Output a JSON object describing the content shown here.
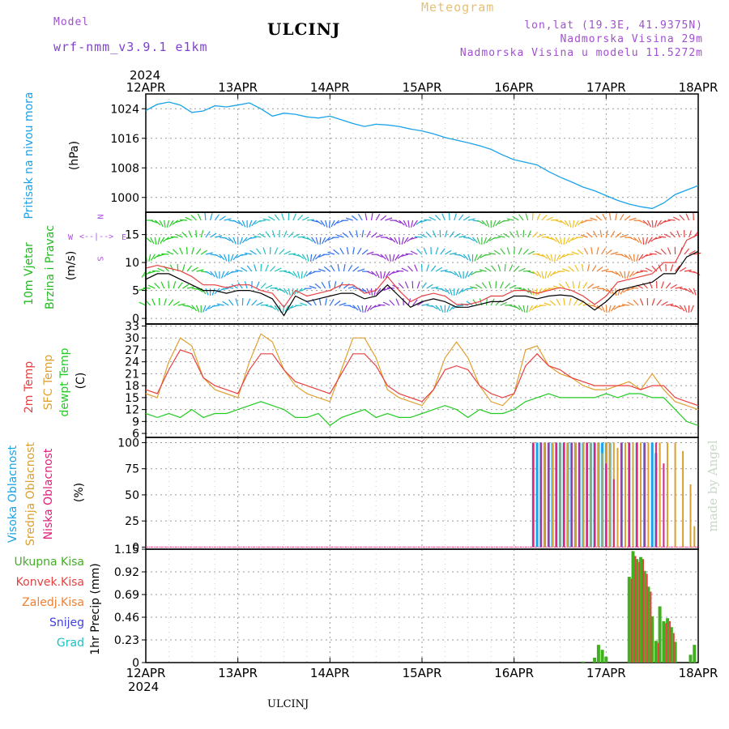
{
  "header": {
    "model_label": "Model",
    "model_name": "wrf-nmm_v3.9.1 e1km",
    "station": "ULCINJ",
    "chart_kind": "Meteogram",
    "lonlat": "lon,lat (19.3E, 41.9375N)",
    "elevation": "Nadmorska Visina 29m",
    "model_elevation": "Nadmorska Visina u modelu 11.5272m",
    "footer_station": "ULCINJ",
    "watermark": "made by Angel"
  },
  "colors": {
    "pressure": "#1aa3e8",
    "t2m": "#e84040",
    "sfc": "#e0a030",
    "dewpt": "#22cc22",
    "high_cloud": "#1aa3e8",
    "mid_cloud": "#d8a030",
    "low_cloud": "#e0207a",
    "precip_total": "#40b020",
    "precip_conv": "#e84040",
    "precip_strat": "#f08030",
    "snow": "#4040e0",
    "graupel": "#20c0c0",
    "wind_speed": "#000000",
    "gust": "#e84040"
  },
  "legends": {
    "pressure_name": "Pritisak na nivou mora",
    "pressure_unit": "(hPa)",
    "wind_name1": "10m Vjetar",
    "wind_name2": "Brzina i Pravac",
    "wind_unit": "(m/s)",
    "compass_n": "N",
    "compass_s": "S",
    "compass_e": "E",
    "compass_w": "W",
    "t2m": "2m Temp",
    "sfc": "SFC Temp",
    "dewpt": "dewpt Temp",
    "temp_unit": "(C)",
    "high_cloud": "Visoka Oblacnost",
    "mid_cloud": "Srednja Oblacnost",
    "low_cloud": "Niska Oblacnost",
    "cloud_unit": "(%)",
    "precip_total": "Ukupna Kisa",
    "precip_conv": "Konvek.Kisa",
    "precip_strat": "Zaledj.Kisa",
    "snow": "Snijeg",
    "graupel": "Grad",
    "precip_unit": "1hr Precip (mm)"
  },
  "chart_data": {
    "type": "line",
    "year": "2024",
    "x_labels": [
      "12APR",
      "13APR",
      "14APR",
      "15APR",
      "16APR",
      "17APR",
      "18APR"
    ],
    "hours_total": 144,
    "panels": {
      "pressure": {
        "unit": "hPa",
        "ylim": [
          996,
          1028
        ],
        "yticks": [
          1000,
          1008,
          1016,
          1024
        ],
        "x": [
          0,
          3,
          6,
          9,
          12,
          15,
          18,
          21,
          24,
          27,
          30,
          33,
          36,
          39,
          42,
          45,
          48,
          51,
          54,
          57,
          60,
          63,
          66,
          69,
          72,
          75,
          78,
          81,
          84,
          87,
          90,
          93,
          96,
          99,
          102,
          105,
          108,
          111,
          114,
          117,
          120,
          123,
          126,
          129,
          132,
          135,
          138,
          141,
          144
        ],
        "values": [
          1023.5,
          1025.2,
          1025.8,
          1025.0,
          1023.0,
          1023.4,
          1024.8,
          1024.5,
          1025.0,
          1025.6,
          1024.0,
          1022.0,
          1022.8,
          1022.5,
          1021.8,
          1021.5,
          1022.0,
          1021.0,
          1020.0,
          1019.2,
          1019.8,
          1019.6,
          1019.2,
          1018.5,
          1018.0,
          1017.2,
          1016.2,
          1015.5,
          1014.8,
          1014.0,
          1013.0,
          1011.5,
          1010.2,
          1009.5,
          1008.8,
          1007.0,
          1005.5,
          1004.2,
          1002.8,
          1001.8,
          1000.5,
          999.2,
          998.2,
          997.5,
          997.0,
          998.5,
          1000.8,
          1002.0,
          1003.2
        ]
      },
      "wind": {
        "unit": "m/s",
        "ylim": [
          -1,
          19
        ],
        "yticks": [
          0,
          5,
          10,
          15
        ],
        "x": [
          0,
          3,
          6,
          9,
          12,
          15,
          18,
          21,
          24,
          27,
          30,
          33,
          36,
          39,
          42,
          45,
          48,
          51,
          54,
          57,
          60,
          63,
          66,
          69,
          72,
          75,
          78,
          81,
          84,
          87,
          90,
          93,
          96,
          99,
          102,
          105,
          108,
          111,
          114,
          117,
          120,
          123,
          126,
          129,
          132,
          135,
          138,
          141,
          144
        ],
        "speed": [
          7,
          8,
          8,
          7,
          6,
          5,
          5,
          4.5,
          5,
          5,
          4.5,
          3.5,
          0.5,
          4,
          3,
          3.5,
          4,
          4.5,
          4.5,
          3.5,
          4,
          6,
          4,
          2,
          3,
          3.5,
          3,
          2,
          2,
          2.5,
          3,
          3,
          4,
          4,
          3.5,
          4,
          4.2,
          4,
          3,
          1.5,
          3,
          5,
          5.5,
          6,
          6.5,
          8,
          8,
          11,
          12
        ],
        "gust": [
          9,
          9.5,
          9,
          8.5,
          7.5,
          6,
          6,
          5.5,
          6,
          6,
          5,
          4.5,
          2,
          5,
          4,
          4.5,
          5,
          6,
          6,
          4.5,
          5,
          7.5,
          5,
          3,
          4,
          4.5,
          4,
          2.5,
          2.5,
          3,
          4,
          4,
          5,
          5,
          4.5,
          5,
          5.5,
          5,
          4,
          2.5,
          4,
          6.5,
          7,
          7.5,
          8,
          10,
          10,
          14,
          15
        ]
      },
      "temperature": {
        "unit": "C",
        "ylim": [
          5,
          33.5
        ],
        "yticks": [
          6,
          9,
          12,
          15,
          18,
          21,
          24,
          27,
          30,
          33
        ],
        "x": [
          0,
          3,
          6,
          9,
          12,
          15,
          18,
          21,
          24,
          27,
          30,
          33,
          36,
          39,
          42,
          45,
          48,
          51,
          54,
          57,
          60,
          63,
          66,
          69,
          72,
          75,
          78,
          81,
          84,
          87,
          90,
          93,
          96,
          99,
          102,
          105,
          108,
          111,
          114,
          117,
          120,
          123,
          126,
          129,
          132,
          135,
          138,
          141,
          144
        ],
        "t2m": [
          17,
          16,
          22,
          27,
          26,
          20,
          18,
          17,
          16,
          22,
          26,
          26,
          22,
          19,
          18,
          17,
          16,
          21,
          26,
          26,
          23,
          18,
          16,
          15,
          14,
          17,
          22,
          23,
          22,
          18,
          16,
          15,
          16,
          23,
          26,
          23,
          22,
          20,
          19,
          18,
          18,
          18,
          18,
          17,
          18,
          18,
          15,
          14,
          13
        ],
        "sfc": [
          16,
          15,
          24,
          30,
          28,
          20,
          17,
          16,
          15,
          24,
          31,
          29,
          22,
          18,
          16,
          15,
          14,
          22,
          30,
          30,
          25,
          17,
          15,
          14,
          13,
          17,
          25,
          29,
          25,
          18,
          14,
          13,
          16,
          27,
          28,
          23,
          21,
          20,
          18,
          17,
          17,
          18,
          19,
          17,
          21,
          17,
          14,
          13,
          12
        ],
        "dewpt": [
          11,
          10,
          11,
          10,
          12,
          10,
          11,
          11,
          12,
          13,
          14,
          13,
          12,
          10,
          10,
          11,
          8,
          10,
          11,
          12,
          10,
          11,
          10,
          10,
          11,
          12,
          13,
          12,
          10,
          12,
          11,
          11,
          12,
          14,
          15,
          16,
          15,
          15,
          15,
          15,
          16,
          15,
          16,
          16,
          15,
          15,
          12,
          9,
          8
        ]
      },
      "cloud": {
        "unit": "%",
        "ylim": [
          -2,
          105
        ],
        "yticks": [
          0,
          25,
          50,
          75,
          100
        ],
        "high": [
          [
            101,
            100
          ],
          [
            102,
            100
          ],
          [
            103,
            100
          ],
          [
            104,
            100
          ],
          [
            105,
            100
          ],
          [
            106,
            100
          ],
          [
            107,
            100
          ],
          [
            108,
            100
          ],
          [
            109,
            100
          ],
          [
            110,
            100
          ],
          [
            111,
            100
          ],
          [
            112,
            100
          ],
          [
            113,
            100
          ],
          [
            114,
            100
          ],
          [
            115,
            100
          ],
          [
            116,
            100
          ],
          [
            117,
            100
          ],
          [
            118,
            100
          ],
          [
            119,
            100
          ],
          [
            120,
            100
          ],
          [
            121,
            100
          ],
          [
            124,
            100
          ],
          [
            126,
            100
          ],
          [
            128,
            100
          ],
          [
            130,
            100
          ],
          [
            132,
            100
          ],
          [
            133,
            90
          ]
        ],
        "mid": [
          [
            104,
            100
          ],
          [
            106,
            100
          ],
          [
            108,
            100
          ],
          [
            110,
            100
          ],
          [
            112,
            100
          ],
          [
            114,
            100
          ],
          [
            116,
            100
          ],
          [
            118,
            100
          ],
          [
            119,
            90
          ],
          [
            120,
            100
          ],
          [
            121,
            100
          ],
          [
            122,
            100
          ],
          [
            123,
            95
          ],
          [
            125,
            100
          ],
          [
            127,
            100
          ],
          [
            129,
            100
          ],
          [
            131,
            100
          ],
          [
            134,
            100
          ],
          [
            136,
            100
          ],
          [
            138,
            100
          ],
          [
            140,
            92
          ],
          [
            142,
            60
          ],
          [
            143,
            20
          ]
        ],
        "low": [
          [
            101,
            100
          ],
          [
            103,
            100
          ],
          [
            105,
            100
          ],
          [
            107,
            100
          ],
          [
            109,
            100
          ],
          [
            111,
            100
          ],
          [
            113,
            100
          ],
          [
            115,
            100
          ],
          [
            117,
            100
          ],
          [
            120,
            80
          ],
          [
            122,
            65
          ],
          [
            124,
            100
          ],
          [
            126,
            100
          ],
          [
            128,
            100
          ],
          [
            130,
            100
          ],
          [
            133,
            100
          ],
          [
            135,
            80
          ]
        ]
      },
      "precip": {
        "unit": "mm",
        "ylim": [
          0,
          1.15
        ],
        "yticks": [
          0,
          0.23,
          0.46,
          0.69,
          0.92,
          1.15
        ],
        "total": [
          [
            114,
            0.01
          ],
          [
            117,
            0.05
          ],
          [
            118,
            0.18
          ],
          [
            119,
            0.13
          ],
          [
            120,
            0.06
          ],
          [
            126,
            0.87
          ],
          [
            127,
            1.13
          ],
          [
            128,
            1.05
          ],
          [
            129,
            1.07
          ],
          [
            130,
            0.93
          ],
          [
            131,
            0.77
          ],
          [
            132,
            0.47
          ],
          [
            133,
            0.22
          ],
          [
            134,
            0.57
          ],
          [
            135,
            0.42
          ],
          [
            136,
            0.45
          ],
          [
            137,
            0.36
          ],
          [
            138,
            0.21
          ],
          [
            142,
            0.08
          ],
          [
            143,
            0.18
          ]
        ],
        "conv": [
          [
            126,
            0.85
          ],
          [
            127,
            1.08
          ],
          [
            128,
            1.02
          ],
          [
            129,
            1.05
          ],
          [
            130,
            0.9
          ],
          [
            131,
            0.72
          ],
          [
            133,
            0.2
          ],
          [
            135,
            0.4
          ],
          [
            136,
            0.42
          ],
          [
            137,
            0.3
          ]
        ]
      }
    }
  }
}
